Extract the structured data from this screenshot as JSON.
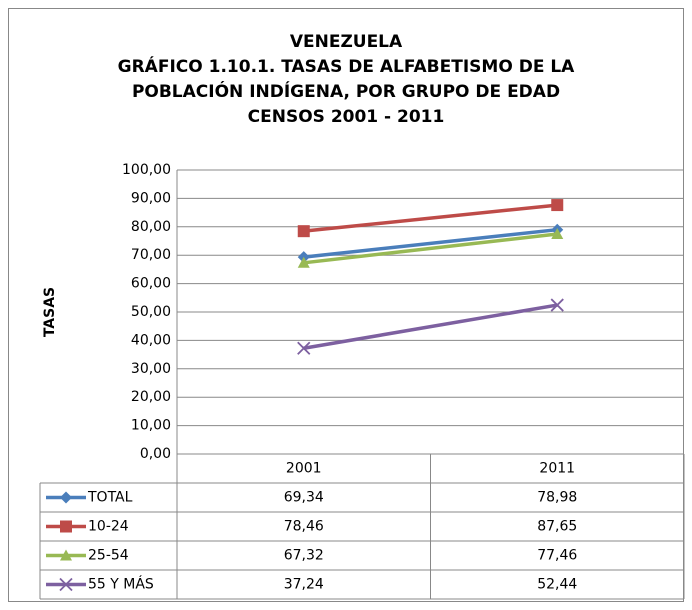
{
  "chart_data": {
    "type": "line",
    "title": [
      "VENEZUELA",
      "GRÁFICO 1.10.1. TASAS DE ALFABETISMO DE LA",
      "POBLACIÓN INDÍGENA, POR GRUPO DE EDAD",
      "CENSOS 2001 - 2011"
    ],
    "y_label": "TASAS",
    "categories": [
      "2001",
      "2011"
    ],
    "series": [
      {
        "name": "TOTAL",
        "color": "#4a7ebb",
        "marker": "diamond",
        "values": [
          69.34,
          78.98
        ],
        "value_labels": [
          "69,34",
          "78,98"
        ]
      },
      {
        "name": "10-24",
        "color": "#be4b48",
        "marker": "square",
        "values": [
          78.46,
          87.65
        ],
        "value_labels": [
          "78,46",
          "87,65"
        ]
      },
      {
        "name": "25-54",
        "color": "#98b954",
        "marker": "triangle",
        "values": [
          67.32,
          77.46
        ],
        "value_labels": [
          "67,32",
          "77,46"
        ]
      },
      {
        "name": "55 Y MÁS",
        "color": "#7d60a0",
        "marker": "x",
        "values": [
          37.24,
          52.44
        ],
        "value_labels": [
          "37,24",
          "52,44"
        ]
      }
    ],
    "ylim": [
      0,
      100
    ],
    "yticks": [
      {
        "value": 0,
        "label": "0,00"
      },
      {
        "value": 10,
        "label": "10,00"
      },
      {
        "value": 20,
        "label": "20,00"
      },
      {
        "value": 30,
        "label": "30,00"
      },
      {
        "value": 40,
        "label": "40,00"
      },
      {
        "value": 50,
        "label": "50,00"
      },
      {
        "value": 60,
        "label": "60,00"
      },
      {
        "value": 70,
        "label": "70,00"
      },
      {
        "value": 80,
        "label": "80,00"
      },
      {
        "value": 90,
        "label": "90,00"
      },
      {
        "value": 100,
        "label": "100,00"
      }
    ],
    "grid": true
  }
}
